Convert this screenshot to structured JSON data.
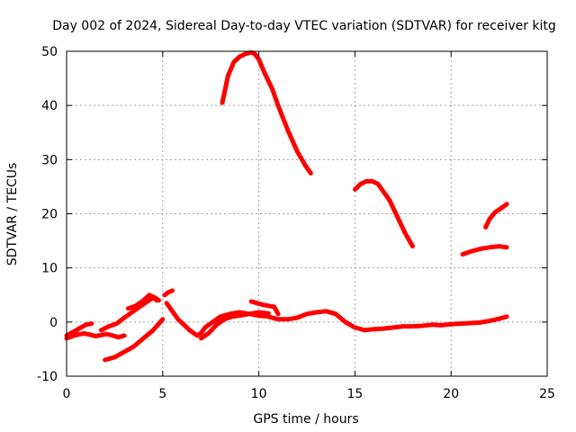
{
  "chart_data": {
    "type": "line",
    "title": "Day 002 of 2024, Sidereal Day-to-day VTEC variation (SDTVAR) for receiver kitg",
    "xlabel": "GPS time / hours",
    "ylabel": "SDTVAR / TECUs",
    "xlim": [
      0,
      25
    ],
    "ylim": [
      -10,
      50
    ],
    "xticks": [
      0,
      5,
      10,
      15,
      20,
      25
    ],
    "yticks": [
      -10,
      0,
      10,
      20,
      30,
      40,
      50
    ],
    "grid": true,
    "color": "#ff0000",
    "series": [
      {
        "name": "arc-high-1",
        "x": [
          8.1,
          8.4,
          8.7,
          9.0,
          9.3,
          9.6,
          9.8,
          10.0,
          10.3,
          10.7,
          11.0,
          11.5,
          12.0,
          12.4,
          12.7
        ],
        "y": [
          40.5,
          45.5,
          48.0,
          49.0,
          49.5,
          49.8,
          49.5,
          48.5,
          46.0,
          43.0,
          40.0,
          35.5,
          31.5,
          29.0,
          27.5
        ]
      },
      {
        "name": "arc-high-2",
        "x": [
          15.0,
          15.3,
          15.6,
          15.9,
          16.2,
          16.5,
          16.8,
          17.2,
          17.6,
          18.0
        ],
        "y": [
          24.5,
          25.5,
          26.0,
          26.0,
          25.5,
          24.0,
          22.5,
          19.5,
          16.5,
          14.0
        ]
      },
      {
        "name": "arc-mid-1",
        "x": [
          20.6,
          21.0,
          21.5,
          22.0,
          22.5,
          22.9
        ],
        "y": [
          12.5,
          13.0,
          13.5,
          13.8,
          14.0,
          13.8
        ]
      },
      {
        "name": "arc-mid-2",
        "x": [
          21.8,
          22.0,
          22.3,
          22.6,
          22.9
        ],
        "y": [
          17.5,
          19.0,
          20.3,
          21.0,
          21.8
        ]
      },
      {
        "name": "arc-low-1",
        "x": [
          2.0,
          2.5,
          3.0,
          3.5,
          4.0,
          4.5,
          5.0
        ],
        "y": [
          -7.0,
          -6.5,
          -5.5,
          -4.5,
          -3.0,
          -1.5,
          0.5
        ]
      },
      {
        "name": "arc-low-2",
        "x": [
          0.0,
          0.3,
          0.6,
          0.9,
          1.2,
          1.5,
          1.8,
          2.1,
          2.4,
          2.7,
          3.0
        ],
        "y": [
          -3.0,
          -2.6,
          -2.3,
          -2.1,
          -2.3,
          -2.6,
          -2.4,
          -2.2,
          -2.5,
          -2.8,
          -2.5
        ]
      },
      {
        "name": "arc-low-3",
        "x": [
          0.0,
          0.5,
          1.0,
          1.3
        ],
        "y": [
          -2.5,
          -1.5,
          -0.5,
          -0.3
        ]
      },
      {
        "name": "arc-low-4",
        "x": [
          1.8,
          2.2,
          2.6,
          3.0,
          3.4,
          3.8,
          4.2,
          4.5,
          4.7
        ],
        "y": [
          -1.5,
          -0.8,
          -0.3,
          0.8,
          1.8,
          2.8,
          3.8,
          4.5,
          4.0
        ]
      },
      {
        "name": "arc-low-5",
        "x": [
          3.2,
          3.6,
          4.0,
          4.3,
          4.6,
          4.8
        ],
        "y": [
          2.5,
          3.0,
          4.0,
          5.0,
          4.5,
          4.0
        ]
      },
      {
        "name": "arc-low-6",
        "x": [
          5.1,
          5.3,
          5.5
        ],
        "y": [
          5.0,
          5.5,
          5.8
        ]
      },
      {
        "name": "arc-low-7",
        "x": [
          5.2,
          5.5,
          5.8,
          6.1,
          6.4,
          6.8,
          7.0,
          7.2,
          7.6,
          8.0,
          8.5,
          9.0,
          9.5,
          10.0,
          10.5,
          11.0,
          11.5,
          12.0,
          12.5,
          13.0,
          13.5,
          14.0,
          14.5,
          15.0,
          15.5,
          16.0,
          16.5,
          17.0,
          17.5,
          18.0,
          18.5,
          19.0,
          19.5,
          20.0,
          20.5,
          21.0,
          21.5,
          22.0,
          22.5,
          22.9
        ],
        "y": [
          3.5,
          2.0,
          0.5,
          -0.5,
          -1.5,
          -2.5,
          -2.0,
          -1.0,
          0.0,
          1.0,
          1.5,
          1.8,
          1.5,
          1.2,
          1.0,
          0.5,
          0.5,
          0.8,
          1.5,
          1.8,
          2.0,
          1.5,
          0.0,
          -1.0,
          -1.5,
          -1.3,
          -1.2,
          -1.0,
          -0.8,
          -0.8,
          -0.7,
          -0.5,
          -0.6,
          -0.4,
          -0.3,
          -0.2,
          -0.1,
          0.2,
          0.6,
          1.0
        ]
      },
      {
        "name": "arc-low-8",
        "x": [
          7.0,
          7.4,
          7.8,
          8.2,
          8.6,
          9.0,
          9.5,
          10.0,
          10.5
        ],
        "y": [
          -3.0,
          -2.0,
          -0.5,
          0.5,
          1.0,
          1.2,
          1.5,
          1.8,
          1.6
        ]
      },
      {
        "name": "arc-low-9",
        "x": [
          9.6,
          9.9,
          10.2,
          10.5,
          10.8,
          11.0
        ],
        "y": [
          3.8,
          3.5,
          3.2,
          3.0,
          2.8,
          1.5
        ]
      }
    ]
  }
}
